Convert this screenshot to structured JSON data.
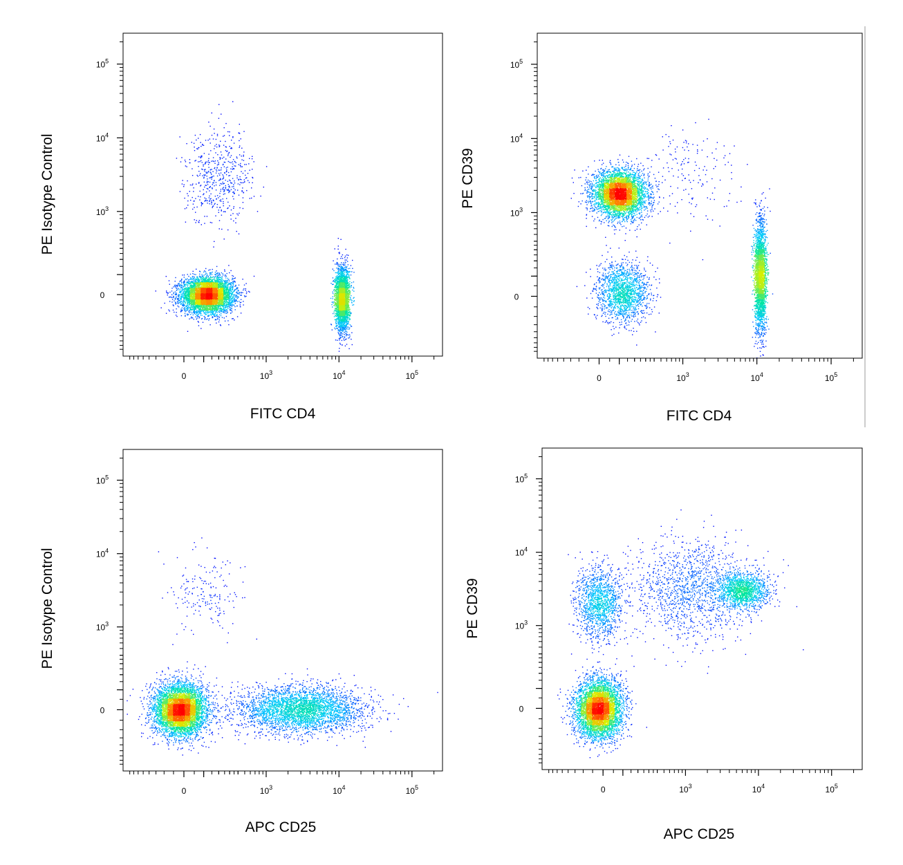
{
  "figure": {
    "description": ""
  },
  "colors": {
    "density_low": "#0000ff",
    "density_mid_low": "#00c8ff",
    "density_mid": "#00e6a0",
    "density_mid_high": "#d8f000",
    "density_high": "#ff0000",
    "frame": "#000000"
  },
  "chart_data": [
    {
      "type": "scatter",
      "subtype": "flow-cytometry-density",
      "xlabel": "FITC CD4",
      "ylabel": "PE Isotype Control",
      "x_scale": "biexponential",
      "y_scale": "biexponential",
      "x_ticks": [
        "0",
        "10^3",
        "10^4",
        "10^5"
      ],
      "y_ticks": [
        "0",
        "10^3",
        "10^4",
        "10^5"
      ],
      "populations": [
        {
          "x": 120,
          "y": 0,
          "spread_x": 0.9,
          "spread_y": 0.6,
          "weight": 0.62
        },
        {
          "x": 11000,
          "y": -20,
          "spread_x": 0.25,
          "spread_y": 1.1,
          "weight": 0.32
        },
        {
          "x": 200,
          "y": 3000,
          "spread_x": 1.2,
          "spread_y": 1.6,
          "weight": 0.06
        }
      ]
    },
    {
      "type": "scatter",
      "subtype": "flow-cytometry-density",
      "xlabel": "FITC CD4",
      "ylabel": "PE CD39",
      "x_scale": "biexponential",
      "y_scale": "biexponential",
      "x_ticks": [
        "0",
        "10^3",
        "10^4",
        "10^5"
      ],
      "y_ticks": [
        "0",
        "10^3",
        "10^4",
        "10^5"
      ],
      "populations": [
        {
          "x": 100,
          "y": 1800,
          "spread_x": 0.9,
          "spread_y": 0.8,
          "weight": 0.5
        },
        {
          "x": 120,
          "y": 20,
          "spread_x": 0.9,
          "spread_y": 1.0,
          "weight": 0.18
        },
        {
          "x": 11000,
          "y": 100,
          "spread_x": 0.2,
          "spread_y": 1.9,
          "weight": 0.3
        },
        {
          "x": 1000,
          "y": 3000,
          "spread_x": 1.8,
          "spread_y": 1.6,
          "weight": 0.02
        }
      ]
    },
    {
      "type": "scatter",
      "subtype": "flow-cytometry-density",
      "xlabel": "APC CD25",
      "ylabel": "PE Isotype Control",
      "x_scale": "biexponential",
      "y_scale": "biexponential",
      "x_ticks": [
        "0",
        "10^3",
        "10^4",
        "10^5"
      ],
      "y_ticks": [
        "0",
        "10^3",
        "10^4",
        "10^5"
      ],
      "populations": [
        {
          "x": -20,
          "y": 0,
          "spread_x": 0.9,
          "spread_y": 0.9,
          "weight": 0.6
        },
        {
          "x": 3000,
          "y": 0,
          "spread_x": 2.2,
          "spread_y": 0.8,
          "weight": 0.38
        },
        {
          "x": 100,
          "y": 3000,
          "spread_x": 1.3,
          "spread_y": 1.4,
          "weight": 0.02
        }
      ]
    },
    {
      "type": "scatter",
      "subtype": "flow-cytometry-density",
      "xlabel": "APC CD25",
      "ylabel": "PE CD39",
      "x_scale": "biexponential",
      "y_scale": "biexponential",
      "x_ticks": [
        "0",
        "10^3",
        "10^4",
        "10^5"
      ],
      "y_ticks": [
        "0",
        "10^3",
        "10^4",
        "10^5"
      ],
      "populations": [
        {
          "x": -20,
          "y": 0,
          "spread_x": 0.8,
          "spread_y": 1.0,
          "weight": 0.55
        },
        {
          "x": -20,
          "y": 2000,
          "spread_x": 0.8,
          "spread_y": 1.2,
          "weight": 0.15
        },
        {
          "x": 6000,
          "y": 3000,
          "spread_x": 0.9,
          "spread_y": 0.6,
          "weight": 0.15
        },
        {
          "x": 1200,
          "y": 3000,
          "spread_x": 2.2,
          "spread_y": 1.8,
          "weight": 0.15
        }
      ]
    }
  ]
}
